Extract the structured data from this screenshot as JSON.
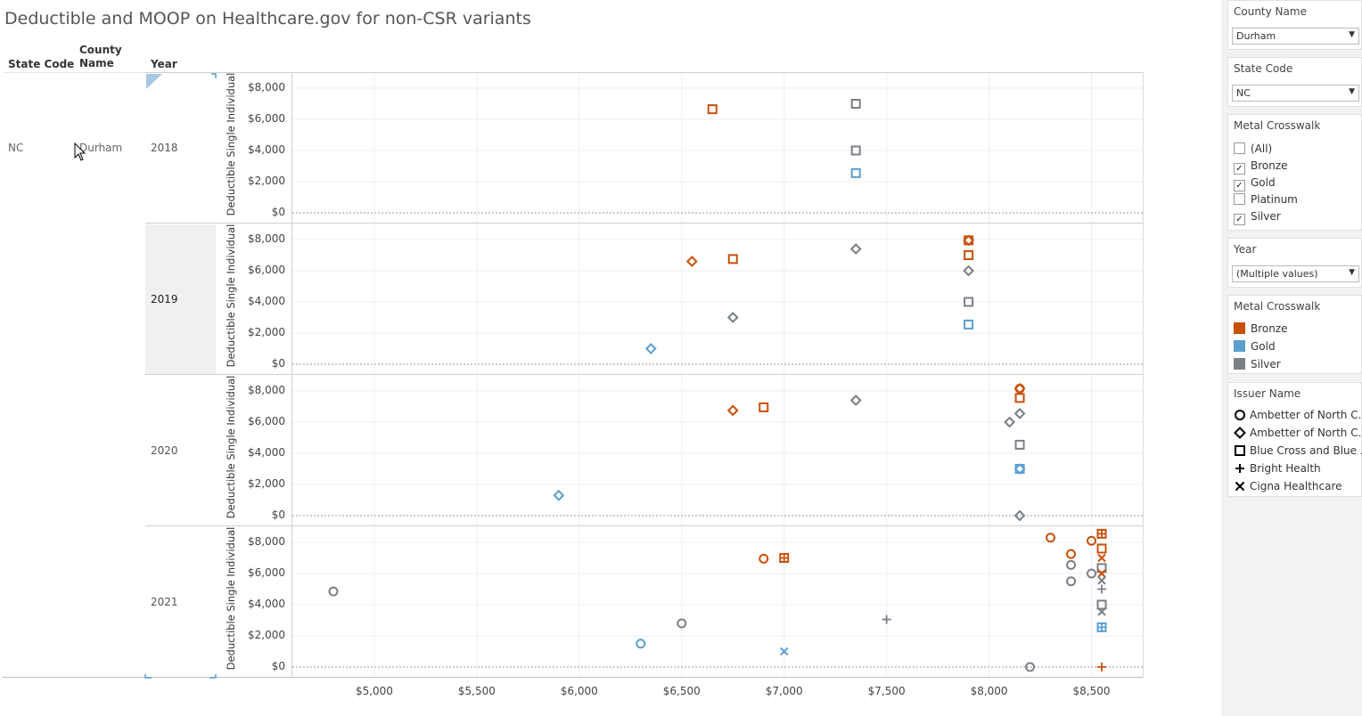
{
  "title": "Deductible and MOOP on Healthcare.gov for non-CSR variants",
  "table_headers": {
    "state_code": "State Code",
    "county_name_1": "County",
    "county_name_2": "Name",
    "year": "Year"
  },
  "row": {
    "state": "NC",
    "county": "Durham"
  },
  "filters": {
    "county": {
      "label": "County Name",
      "value": "Durham"
    },
    "state": {
      "label": "State Code",
      "value": "NC"
    },
    "metal": {
      "label": "Metal Crosswalk",
      "options": [
        {
          "label": "(All)",
          "checked": false
        },
        {
          "label": "Bronze",
          "checked": true
        },
        {
          "label": "Gold",
          "checked": true
        },
        {
          "label": "Platinum",
          "checked": false
        },
        {
          "label": "Silver",
          "checked": true
        }
      ]
    },
    "year": {
      "label": "Year",
      "value": "(Multiple values)"
    }
  },
  "legend_metal": {
    "title": "Metal Crosswalk",
    "items": [
      {
        "label": "Bronze",
        "color": "#c8500a"
      },
      {
        "label": "Gold",
        "color": "#5b9fcf"
      },
      {
        "label": "Silver",
        "color": "#7b7f86"
      }
    ]
  },
  "legend_issuer": {
    "title": "Issuer Name",
    "items": [
      {
        "label": "Ambetter of North C..",
        "shape": "circle"
      },
      {
        "label": "Ambetter of North C..",
        "shape": "diamond"
      },
      {
        "label": "Blue Cross and Blue ..",
        "shape": "square"
      },
      {
        "label": "Bright Health",
        "shape": "plus"
      },
      {
        "label": "Cigna Healthcare",
        "shape": "cross"
      }
    ]
  },
  "chart_data": {
    "type": "scatter",
    "title": "Deductible and MOOP on Healthcare.gov for non-CSR variants",
    "ylabel": "Deductible Single Individual",
    "xlabel": "",
    "xlim": [
      4600,
      8750
    ],
    "ylim": [
      0,
      9000
    ],
    "x_ticks": [
      "$5,000",
      "$5,500",
      "$6,000",
      "$6,500",
      "$7,000",
      "$7,500",
      "$8,000",
      "$8,500"
    ],
    "x_tick_values": [
      5000,
      5500,
      6000,
      6500,
      7000,
      7500,
      8000,
      8500
    ],
    "y_ticks": [
      "$8,000",
      "$6,000",
      "$4,000",
      "$2,000",
      "$0"
    ],
    "y_tick_values": [
      8000,
      6000,
      4000,
      2000,
      0
    ],
    "panels": [
      {
        "year": "2018",
        "points": [
          {
            "x": 6650,
            "y": 6650,
            "metal": "Bronze",
            "shape": "square"
          },
          {
            "x": 7350,
            "y": 7000,
            "metal": "Silver",
            "shape": "square"
          },
          {
            "x": 7350,
            "y": 4000,
            "metal": "Silver",
            "shape": "square"
          },
          {
            "x": 7350,
            "y": 2550,
            "metal": "Gold",
            "shape": "square"
          }
        ]
      },
      {
        "year": "2019",
        "points": [
          {
            "x": 6550,
            "y": 6600,
            "metal": "Bronze",
            "shape": "diamond"
          },
          {
            "x": 6750,
            "y": 6750,
            "metal": "Bronze",
            "shape": "square"
          },
          {
            "x": 7350,
            "y": 7400,
            "metal": "Silver",
            "shape": "diamond"
          },
          {
            "x": 6750,
            "y": 3000,
            "metal": "Silver",
            "shape": "diamond"
          },
          {
            "x": 6350,
            "y": 1000,
            "metal": "Gold",
            "shape": "diamond"
          },
          {
            "x": 7900,
            "y": 7950,
            "metal": "Bronze",
            "shape": "square"
          },
          {
            "x": 7900,
            "y": 7950,
            "metal": "Bronze",
            "shape": "diamond"
          },
          {
            "x": 7900,
            "y": 7000,
            "metal": "Bronze",
            "shape": "square"
          },
          {
            "x": 7900,
            "y": 6000,
            "metal": "Silver",
            "shape": "diamond"
          },
          {
            "x": 7900,
            "y": 4000,
            "metal": "Silver",
            "shape": "square"
          },
          {
            "x": 7900,
            "y": 2550,
            "metal": "Gold",
            "shape": "square"
          }
        ]
      },
      {
        "year": "2020",
        "points": [
          {
            "x": 6750,
            "y": 6750,
            "metal": "Bronze",
            "shape": "diamond"
          },
          {
            "x": 6900,
            "y": 6950,
            "metal": "Bronze",
            "shape": "square"
          },
          {
            "x": 7350,
            "y": 7400,
            "metal": "Silver",
            "shape": "diamond"
          },
          {
            "x": 5900,
            "y": 1300,
            "metal": "Gold",
            "shape": "diamond"
          },
          {
            "x": 8150,
            "y": 8150,
            "metal": "Bronze",
            "shape": "circle"
          },
          {
            "x": 8150,
            "y": 8150,
            "metal": "Bronze",
            "shape": "diamond"
          },
          {
            "x": 8150,
            "y": 7550,
            "metal": "Bronze",
            "shape": "square"
          },
          {
            "x": 8150,
            "y": 6550,
            "metal": "Silver",
            "shape": "diamond"
          },
          {
            "x": 8100,
            "y": 6000,
            "metal": "Silver",
            "shape": "diamond"
          },
          {
            "x": 8150,
            "y": 4550,
            "metal": "Silver",
            "shape": "square"
          },
          {
            "x": 8150,
            "y": 3000,
            "metal": "Gold",
            "shape": "square"
          },
          {
            "x": 8150,
            "y": 3000,
            "metal": "Gold",
            "shape": "diamond"
          },
          {
            "x": 8150,
            "y": 0,
            "metal": "Silver",
            "shape": "diamond"
          }
        ]
      },
      {
        "year": "2021",
        "points": [
          {
            "x": 4800,
            "y": 4850,
            "metal": "Silver",
            "shape": "circle"
          },
          {
            "x": 6900,
            "y": 6950,
            "metal": "Bronze",
            "shape": "circle"
          },
          {
            "x": 7000,
            "y": 7000,
            "metal": "Bronze",
            "shape": "square"
          },
          {
            "x": 7000,
            "y": 7000,
            "metal": "Bronze",
            "shape": "plus"
          },
          {
            "x": 6300,
            "y": 1500,
            "metal": "Gold",
            "shape": "circle"
          },
          {
            "x": 6500,
            "y": 2800,
            "metal": "Silver",
            "shape": "circle"
          },
          {
            "x": 7000,
            "y": 1000,
            "metal": "Gold",
            "shape": "cross"
          },
          {
            "x": 7500,
            "y": 3050,
            "metal": "Silver",
            "shape": "plus"
          },
          {
            "x": 8200,
            "y": 0,
            "metal": "Silver",
            "shape": "circle"
          },
          {
            "x": 8300,
            "y": 8300,
            "metal": "Bronze",
            "shape": "circle"
          },
          {
            "x": 8400,
            "y": 7250,
            "metal": "Bronze",
            "shape": "circle"
          },
          {
            "x": 8400,
            "y": 6550,
            "metal": "Silver",
            "shape": "circle"
          },
          {
            "x": 8400,
            "y": 5500,
            "metal": "Silver",
            "shape": "circle"
          },
          {
            "x": 8500,
            "y": 8100,
            "metal": "Bronze",
            "shape": "circle"
          },
          {
            "x": 8500,
            "y": 6000,
            "metal": "Silver",
            "shape": "circle"
          },
          {
            "x": 8550,
            "y": 8550,
            "metal": "Bronze",
            "shape": "square"
          },
          {
            "x": 8550,
            "y": 8550,
            "metal": "Bronze",
            "shape": "plus"
          },
          {
            "x": 8550,
            "y": 7600,
            "metal": "Bronze",
            "shape": "square"
          },
          {
            "x": 8550,
            "y": 7000,
            "metal": "Bronze",
            "shape": "cross"
          },
          {
            "x": 8550,
            "y": 6350,
            "metal": "Silver",
            "shape": "square"
          },
          {
            "x": 8550,
            "y": 6000,
            "metal": "Bronze",
            "shape": "cross"
          },
          {
            "x": 8550,
            "y": 5550,
            "metal": "Silver",
            "shape": "cross"
          },
          {
            "x": 8550,
            "y": 5000,
            "metal": "Silver",
            "shape": "plus"
          },
          {
            "x": 8550,
            "y": 4000,
            "metal": "Silver",
            "shape": "square"
          },
          {
            "x": 8550,
            "y": 3550,
            "metal": "Silver",
            "shape": "cross"
          },
          {
            "x": 8550,
            "y": 2550,
            "metal": "Gold",
            "shape": "square"
          },
          {
            "x": 8550,
            "y": 2550,
            "metal": "Gold",
            "shape": "plus"
          },
          {
            "x": 8550,
            "y": 0,
            "metal": "Bronze",
            "shape": "plus"
          }
        ]
      }
    ]
  }
}
